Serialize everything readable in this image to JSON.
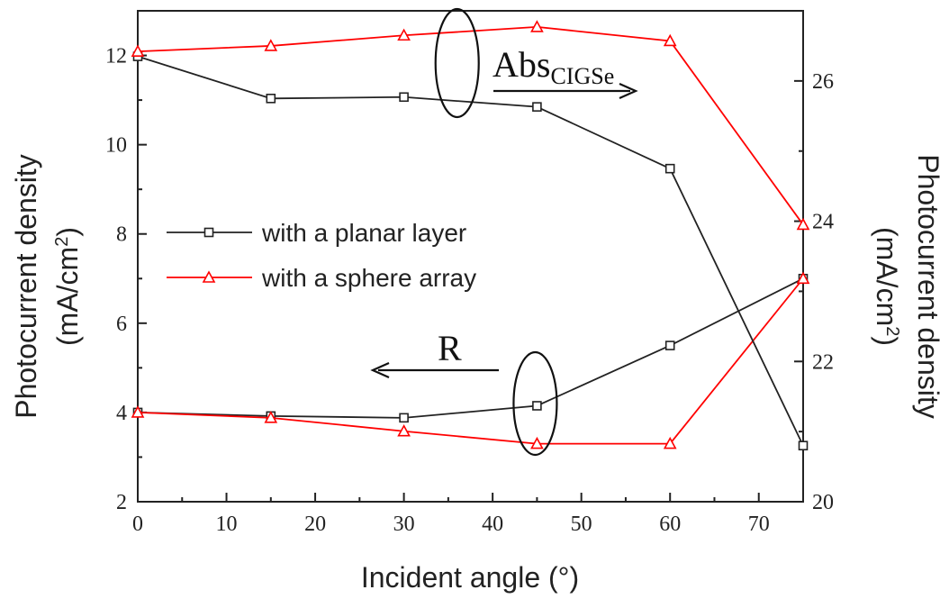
{
  "chart_data": {
    "type": "line",
    "x": [
      0,
      15,
      30,
      45,
      60,
      75
    ],
    "xlabel": "Incident angle (°)",
    "xlim": [
      0,
      75
    ],
    "x_ticks": [
      0,
      10,
      20,
      30,
      40,
      50,
      60,
      70
    ],
    "ylabel_left": {
      "line1": "Photocurrent density",
      "line2_pre": "(mA/cm",
      "sup": "2",
      "line2_post": ")"
    },
    "ylim_left": [
      2,
      13
    ],
    "y_ticks_left": [
      2,
      4,
      6,
      8,
      10,
      12
    ],
    "ylabel_right": {
      "line1": "Photocurrent density",
      "line2_pre": "(mA/cm",
      "sup": "2",
      "line2_post": ")"
    },
    "ylim_right": [
      20,
      27
    ],
    "y_ticks_right": [
      20,
      22,
      24,
      26
    ],
    "grid": false,
    "legend": {
      "placement": "center-left",
      "entries": [
        {
          "label": "with a planar layer",
          "marker": "square",
          "color": "#222222"
        },
        {
          "label": "with a sphere array",
          "marker": "triangle",
          "color": "#ff0000"
        }
      ]
    },
    "groups": [
      {
        "annotation": "R",
        "axis": "left",
        "series": [
          {
            "name": "with a planar layer",
            "color": "#222222",
            "marker": "square",
            "values": [
              4.0,
              3.92,
              3.88,
              4.15,
              5.5,
              7.0
            ]
          },
          {
            "name": "with a sphere array",
            "color": "#ff0000",
            "marker": "triangle",
            "values": [
              4.0,
              3.88,
              3.58,
              3.3,
              3.3,
              7.0
            ]
          }
        ]
      },
      {
        "annotation_main": "Abs",
        "annotation_sub": "CIGSe",
        "axis": "right",
        "series": [
          {
            "name": "with a planar layer",
            "color": "#222222",
            "marker": "square",
            "values": [
              26.35,
              25.75,
              25.77,
              25.63,
              24.75,
              20.8
            ]
          },
          {
            "name": "with a sphere array",
            "color": "#ff0000",
            "marker": "triangle",
            "values": [
              26.42,
              26.5,
              26.65,
              26.77,
              26.57,
              23.95
            ]
          }
        ]
      }
    ]
  }
}
